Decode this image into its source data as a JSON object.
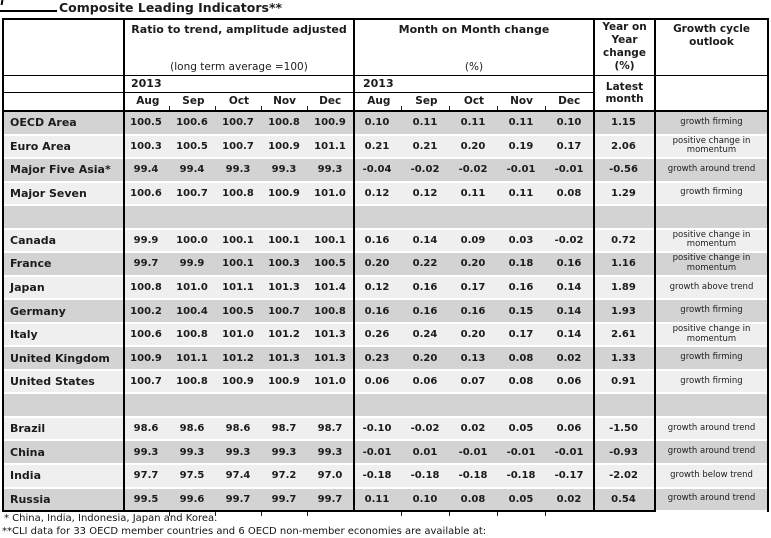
{
  "title": "Composite Leading Indicators**",
  "table": {
    "headers": {
      "ratio_group": {
        "title": "Ratio to trend, amplitude adjusted",
        "subtitle": "(long term average =100)"
      },
      "mom_group": {
        "title": "Month on Month change",
        "subtitle": "(%)"
      },
      "yoy_group": {
        "title": "Year on Year change (%)"
      },
      "outlook_group": {
        "title": "Growth cycle outlook"
      },
      "year_label_ratio": "2013",
      "year_label_mom": "2013",
      "latest_month_label": "Latest month",
      "months": [
        "Aug",
        "Sep",
        "Oct",
        "Nov",
        "Dec"
      ]
    },
    "rows": [
      {
        "label": "OECD Area",
        "ratio": [
          "100.5",
          "100.6",
          "100.7",
          "100.8",
          "100.9"
        ],
        "mom": [
          "0.10",
          "0.11",
          "0.11",
          "0.11",
          "0.10"
        ],
        "yoy": "1.15",
        "outlook": "growth firming",
        "shaded": true
      },
      {
        "label": "Euro Area",
        "ratio": [
          "100.3",
          "100.5",
          "100.7",
          "100.9",
          "101.1"
        ],
        "mom": [
          "0.21",
          "0.21",
          "0.20",
          "0.19",
          "0.17"
        ],
        "yoy": "2.06",
        "outlook": "positive change in momentum",
        "shaded": false
      },
      {
        "label": "Major Five Asia*",
        "ratio": [
          "99.4",
          "99.4",
          "99.3",
          "99.3",
          "99.3"
        ],
        "mom": [
          "-0.04",
          "-0.02",
          "-0.02",
          "-0.01",
          "-0.01"
        ],
        "yoy": "-0.56",
        "outlook": "growth around trend",
        "shaded": true
      },
      {
        "label": "Major Seven",
        "ratio": [
          "100.6",
          "100.7",
          "100.8",
          "100.9",
          "101.0"
        ],
        "mom": [
          "0.12",
          "0.12",
          "0.11",
          "0.11",
          "0.08"
        ],
        "yoy": "1.29",
        "outlook": "growth firming",
        "shaded": false
      },
      {
        "spacer": true,
        "shaded": true
      },
      {
        "label": "Canada",
        "ratio": [
          "99.9",
          "100.0",
          "100.1",
          "100.1",
          "100.1"
        ],
        "mom": [
          "0.16",
          "0.14",
          "0.09",
          "0.03",
          "-0.02"
        ],
        "yoy": "0.72",
        "outlook": "positive change in momentum",
        "shaded": false
      },
      {
        "label": "France",
        "ratio": [
          "99.7",
          "99.9",
          "100.1",
          "100.3",
          "100.5"
        ],
        "mom": [
          "0.20",
          "0.22",
          "0.20",
          "0.18",
          "0.16"
        ],
        "yoy": "1.16",
        "outlook": "positive change in momentum",
        "shaded": true
      },
      {
        "label": "Japan",
        "ratio": [
          "100.8",
          "101.0",
          "101.1",
          "101.3",
          "101.4"
        ],
        "mom": [
          "0.12",
          "0.16",
          "0.17",
          "0.16",
          "0.14"
        ],
        "yoy": "1.89",
        "outlook": "growth above trend",
        "shaded": false
      },
      {
        "label": "Germany",
        "ratio": [
          "100.2",
          "100.4",
          "100.5",
          "100.7",
          "100.8"
        ],
        "mom": [
          "0.16",
          "0.16",
          "0.16",
          "0.15",
          "0.14"
        ],
        "yoy": "1.93",
        "outlook": "growth firming",
        "shaded": true
      },
      {
        "label": "Italy",
        "ratio": [
          "100.6",
          "100.8",
          "101.0",
          "101.2",
          "101.3"
        ],
        "mom": [
          "0.26",
          "0.24",
          "0.20",
          "0.17",
          "0.14"
        ],
        "yoy": "2.61",
        "outlook": "positive change in momentum",
        "shaded": false
      },
      {
        "label": "United Kingdom",
        "ratio": [
          "100.9",
          "101.1",
          "101.2",
          "101.3",
          "101.3"
        ],
        "mom": [
          "0.23",
          "0.20",
          "0.13",
          "0.08",
          "0.02"
        ],
        "yoy": "1.33",
        "outlook": "growth firming",
        "shaded": true
      },
      {
        "label": "United States",
        "ratio": [
          "100.7",
          "100.8",
          "100.9",
          "100.9",
          "101.0"
        ],
        "mom": [
          "0.06",
          "0.06",
          "0.07",
          "0.08",
          "0.06"
        ],
        "yoy": "0.91",
        "outlook": "growth firming",
        "shaded": false
      },
      {
        "spacer": true,
        "shaded": true
      },
      {
        "label": "Brazil",
        "ratio": [
          "98.6",
          "98.6",
          "98.6",
          "98.7",
          "98.7"
        ],
        "mom": [
          "-0.10",
          "-0.02",
          "0.02",
          "0.05",
          "0.06"
        ],
        "yoy": "-1.50",
        "outlook": "growth around trend",
        "shaded": false
      },
      {
        "label": "China",
        "ratio": [
          "99.3",
          "99.3",
          "99.3",
          "99.3",
          "99.3"
        ],
        "mom": [
          "-0.01",
          "0.01",
          "-0.01",
          "-0.01",
          "-0.01"
        ],
        "yoy": "-0.93",
        "outlook": "growth around trend",
        "shaded": true
      },
      {
        "label": "India",
        "ratio": [
          "97.7",
          "97.5",
          "97.4",
          "97.2",
          "97.0"
        ],
        "mom": [
          "-0.18",
          "-0.18",
          "-0.18",
          "-0.18",
          "-0.17"
        ],
        "yoy": "-2.02",
        "outlook": "growth below trend",
        "shaded": false
      },
      {
        "label": "Russia",
        "ratio": [
          "99.5",
          "99.6",
          "99.7",
          "99.7",
          "99.7"
        ],
        "mom": [
          "0.11",
          "0.10",
          "0.08",
          "0.05",
          "0.02"
        ],
        "yoy": "0.54",
        "outlook": "growth around trend",
        "shaded": true
      }
    ]
  },
  "footnotes": [
    "*  China, India, Indonesia, Japan and Korea.",
    "**CLI data for 33 OECD member countries and 6 OECD non-member economies are available at:"
  ],
  "colors": {
    "row_shaded": "#d3d3d3",
    "row_plain": "#efefef",
    "border": "#000000",
    "text": "#1c1c1c"
  }
}
